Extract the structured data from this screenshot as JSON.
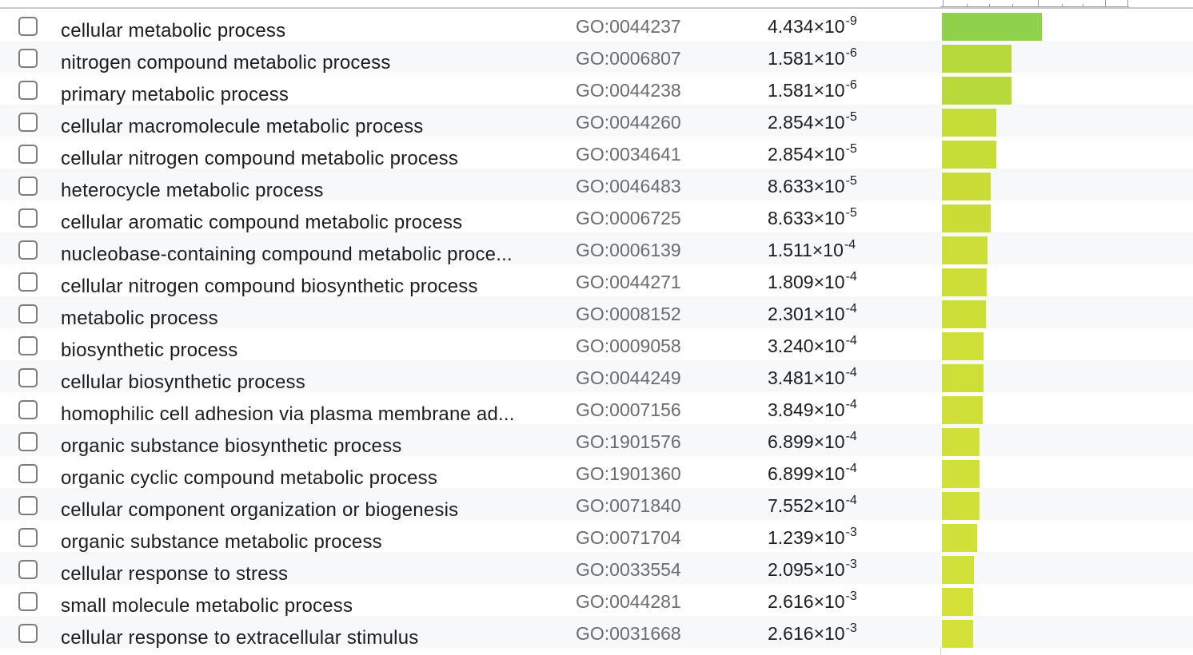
{
  "table": {
    "rows": [
      {
        "term": "cellular metabolic process",
        "go_id": "GO:0044237",
        "p_mantissa": "4.434",
        "p_base": "10",
        "p_exponent": "-9",
        "bar_value": 8.353,
        "bar_color": "#8fd14a"
      },
      {
        "term": "nitrogen compound metabolic process",
        "go_id": "GO:0006807",
        "p_mantissa": "1.581",
        "p_base": "10",
        "p_exponent": "-6",
        "bar_value": 5.801,
        "bar_color": "#b8d93a"
      },
      {
        "term": "primary metabolic process",
        "go_id": "GO:0044238",
        "p_mantissa": "1.581",
        "p_base": "10",
        "p_exponent": "-6",
        "bar_value": 5.801,
        "bar_color": "#b8d93a"
      },
      {
        "term": "cellular macromolecule metabolic process",
        "go_id": "GO:0044260",
        "p_mantissa": "2.854",
        "p_base": "10",
        "p_exponent": "-5",
        "bar_value": 4.545,
        "bar_color": "#c6dc37"
      },
      {
        "term": "cellular nitrogen compound metabolic process",
        "go_id": "GO:0034641",
        "p_mantissa": "2.854",
        "p_base": "10",
        "p_exponent": "-5",
        "bar_value": 4.545,
        "bar_color": "#c6dc37"
      },
      {
        "term": "heterocycle metabolic process",
        "go_id": "GO:0046483",
        "p_mantissa": "8.633",
        "p_base": "10",
        "p_exponent": "-5",
        "bar_value": 4.064,
        "bar_color": "#cadd37"
      },
      {
        "term": "cellular aromatic compound metabolic process",
        "go_id": "GO:0006725",
        "p_mantissa": "8.633",
        "p_base": "10",
        "p_exponent": "-5",
        "bar_value": 4.064,
        "bar_color": "#cadd37"
      },
      {
        "term": "nucleobase-containing compound metabolic proce...",
        "go_id": "GO:0006139",
        "p_mantissa": "1.511",
        "p_base": "10",
        "p_exponent": "-4",
        "bar_value": 3.821,
        "bar_color": "#ccde37"
      },
      {
        "term": "cellular nitrogen compound biosynthetic process",
        "go_id": "GO:0044271",
        "p_mantissa": "1.809",
        "p_base": "10",
        "p_exponent": "-4",
        "bar_value": 3.743,
        "bar_color": "#ccde37"
      },
      {
        "term": "metabolic process",
        "go_id": "GO:0008152",
        "p_mantissa": "2.301",
        "p_base": "10",
        "p_exponent": "-4",
        "bar_value": 3.638,
        "bar_color": "#cddf37"
      },
      {
        "term": "biosynthetic process",
        "go_id": "GO:0009058",
        "p_mantissa": "3.240",
        "p_base": "10",
        "p_exponent": "-4",
        "bar_value": 3.489,
        "bar_color": "#cedf37"
      },
      {
        "term": "cellular biosynthetic process",
        "go_id": "GO:0044249",
        "p_mantissa": "3.481",
        "p_base": "10",
        "p_exponent": "-4",
        "bar_value": 3.458,
        "bar_color": "#cedf37"
      },
      {
        "term": "homophilic cell adhesion via plasma membrane ad...",
        "go_id": "GO:0007156",
        "p_mantissa": "3.849",
        "p_base": "10",
        "p_exponent": "-4",
        "bar_value": 3.415,
        "bar_color": "#cedf37"
      },
      {
        "term": "organic substance biosynthetic process",
        "go_id": "GO:1901576",
        "p_mantissa": "6.899",
        "p_base": "10",
        "p_exponent": "-4",
        "bar_value": 3.161,
        "bar_color": "#d0e038"
      },
      {
        "term": "organic cyclic compound metabolic process",
        "go_id": "GO:1901360",
        "p_mantissa": "6.899",
        "p_base": "10",
        "p_exponent": "-4",
        "bar_value": 3.161,
        "bar_color": "#d0e038"
      },
      {
        "term": "cellular component organization or biogenesis",
        "go_id": "GO:0071840",
        "p_mantissa": "7.552",
        "p_base": "10",
        "p_exponent": "-4",
        "bar_value": 3.122,
        "bar_color": "#d0e038"
      },
      {
        "term": "organic substance metabolic process",
        "go_id": "GO:0071704",
        "p_mantissa": "1.239",
        "p_base": "10",
        "p_exponent": "-3",
        "bar_value": 2.907,
        "bar_color": "#d1e038"
      },
      {
        "term": "cellular response to stress",
        "go_id": "GO:0033554",
        "p_mantissa": "2.095",
        "p_base": "10",
        "p_exponent": "-3",
        "bar_value": 2.679,
        "bar_color": "#d2e139"
      },
      {
        "term": "small molecule metabolic process",
        "go_id": "GO:0044281",
        "p_mantissa": "2.616",
        "p_base": "10",
        "p_exponent": "-3",
        "bar_value": 2.582,
        "bar_color": "#d3e139"
      },
      {
        "term": "cellular response to extracellular stimulus",
        "go_id": "GO:0031668",
        "p_mantissa": "2.616",
        "p_base": "10",
        "p_exponent": "-3",
        "bar_value": 2.582,
        "bar_color": "#d3e139"
      }
    ]
  },
  "bar_axis": {
    "metric": "-log10(p-value)",
    "max": 15
  }
}
